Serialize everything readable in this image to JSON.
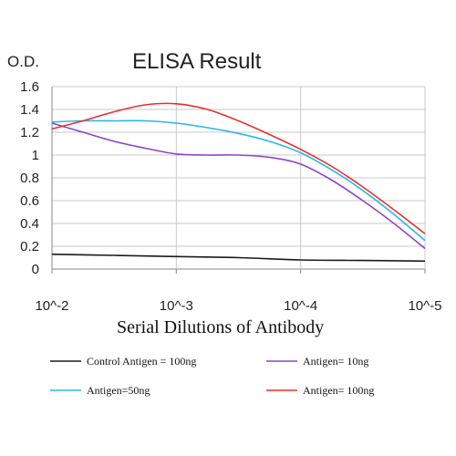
{
  "chart_data": {
    "type": "line",
    "title": "ELISA Result",
    "ylabel": "O.D.",
    "xlabel": "Serial Dilutions of Antibody",
    "x_ticks": [
      "10^-2",
      "10^-3",
      "10^-4",
      "10^-5"
    ],
    "xlim": [
      -2,
      -5
    ],
    "x_scale": "log10 dilution",
    "ylim": [
      0,
      1.6
    ],
    "y_ticks": [
      "0",
      "0.2",
      "0.4",
      "0.6",
      "0.8",
      "1",
      "1.2",
      "1.4",
      "1.6"
    ],
    "grid": true,
    "legend_position": "bottom",
    "series": [
      {
        "name": "Control Antigen = 100ng",
        "color": "#1a1a1a",
        "x": [
          -2,
          -2.5,
          -3,
          -3.5,
          -4,
          -4.5,
          -5
        ],
        "y": [
          0.13,
          0.12,
          0.11,
          0.1,
          0.08,
          0.075,
          0.07
        ]
      },
      {
        "name": "Antigen= 10ng",
        "color": "#8e44c9",
        "x": [
          -2,
          -2.25,
          -2.5,
          -2.75,
          -3,
          -3.25,
          -3.5,
          -3.75,
          -4,
          -4.25,
          -4.5,
          -4.75,
          -5
        ],
        "y": [
          1.28,
          1.2,
          1.12,
          1.06,
          1.01,
          1.0,
          1.0,
          0.98,
          0.92,
          0.78,
          0.6,
          0.4,
          0.18
        ]
      },
      {
        "name": "Antigen=50ng",
        "color": "#2ab6ee",
        "x": [
          -2,
          -2.25,
          -2.5,
          -2.75,
          -3,
          -3.25,
          -3.5,
          -3.75,
          -4,
          -4.25,
          -4.5,
          -4.75,
          -5
        ],
        "y": [
          1.29,
          1.3,
          1.3,
          1.3,
          1.28,
          1.24,
          1.19,
          1.12,
          1.02,
          0.87,
          0.69,
          0.48,
          0.25
        ]
      },
      {
        "name": "Antigen= 100ng",
        "color": "#e8302a",
        "x": [
          -2,
          -2.25,
          -2.5,
          -2.75,
          -3,
          -3.25,
          -3.5,
          -3.75,
          -4,
          -4.25,
          -4.5,
          -4.75,
          -5
        ],
        "y": [
          1.23,
          1.3,
          1.38,
          1.44,
          1.45,
          1.4,
          1.3,
          1.18,
          1.05,
          0.9,
          0.72,
          0.52,
          0.31
        ]
      }
    ]
  }
}
